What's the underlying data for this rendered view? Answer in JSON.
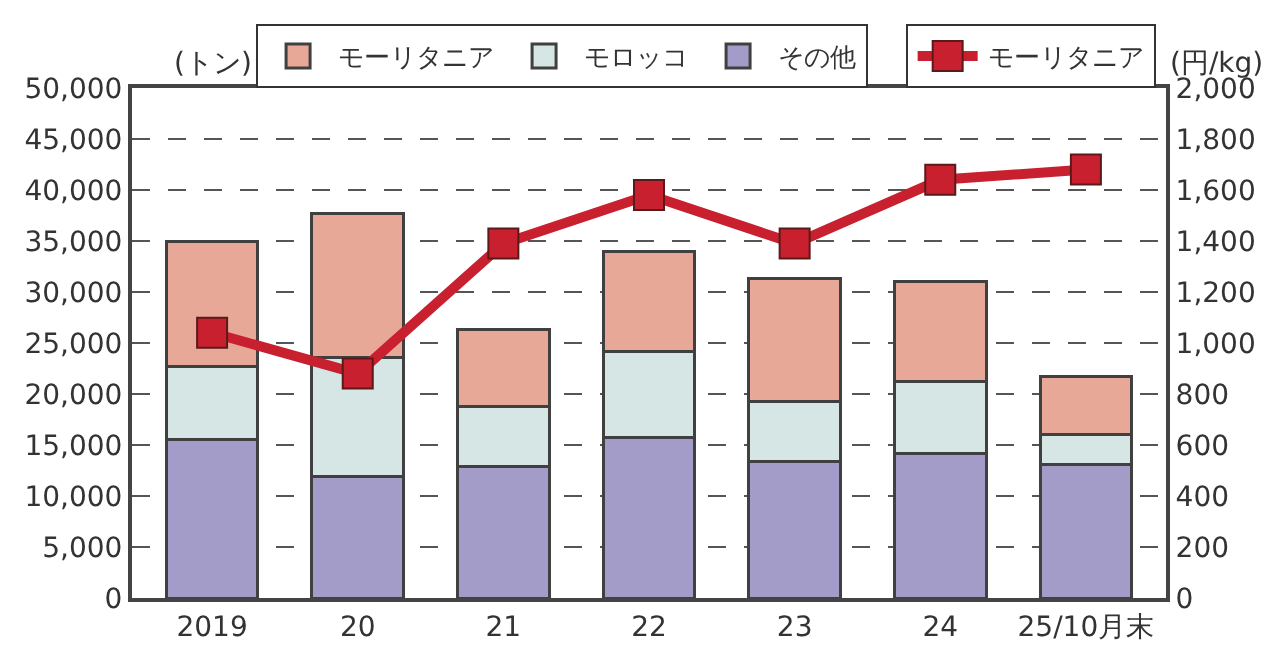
{
  "chart_data": {
    "type": "bar",
    "stacked": true,
    "ylabel": "(トン)",
    "y2label": "(円/kg)",
    "categories": [
      "2019",
      "20",
      "21",
      "22",
      "23",
      "24",
      "25/10月末"
    ],
    "series": [
      {
        "name": "その他",
        "color": "#a49cc8",
        "values": [
          15500,
          11900,
          12900,
          15700,
          13400,
          14200,
          13100
        ]
      },
      {
        "name": "モロッコ",
        "color": "#d5e6e4",
        "values": [
          7200,
          11700,
          5900,
          8500,
          5900,
          7000,
          2900
        ]
      },
      {
        "name": "モーリタニア",
        "color": "#e8a898",
        "values": [
          12300,
          14100,
          7500,
          9800,
          12000,
          9800,
          5700
        ]
      },
      {
        "name": "モーリタニア",
        "type": "line",
        "axis": "y2",
        "color": "#c8202e",
        "marker": "square",
        "values": [
          1040,
          880,
          1390,
          1580,
          1390,
          1640,
          1680
        ]
      }
    ],
    "ylim": [
      0,
      50000
    ],
    "yticks": [
      0,
      {
        "value": 5000,
        "label": "5,000"
      },
      {
        "value": 10000,
        "label": "10,000"
      },
      {
        "value": 15000,
        "label": "15,000"
      },
      {
        "value": 20000,
        "label": "20,000"
      },
      {
        "value": 25000,
        "label": "25,000"
      },
      {
        "value": 30000,
        "label": "30,000"
      },
      {
        "value": 35000,
        "label": "35,000"
      },
      {
        "value": 40000,
        "label": "40,000"
      },
      {
        "value": 45000,
        "label": "45,000"
      },
      {
        "value": 50000,
        "label": "50,000"
      }
    ],
    "y2lim": [
      0,
      2000
    ],
    "y2ticks": [
      0,
      200,
      400,
      600,
      800,
      {
        "value": 1000,
        "label": "1,000"
      },
      {
        "value": 1200,
        "label": "1,200"
      },
      {
        "value": 1400,
        "label": "1,400"
      },
      {
        "value": 1600,
        "label": "1,600"
      },
      {
        "value": 1800,
        "label": "1,800"
      },
      {
        "value": 2000,
        "label": "2,000"
      }
    ],
    "grid": "y",
    "legend": "top"
  }
}
